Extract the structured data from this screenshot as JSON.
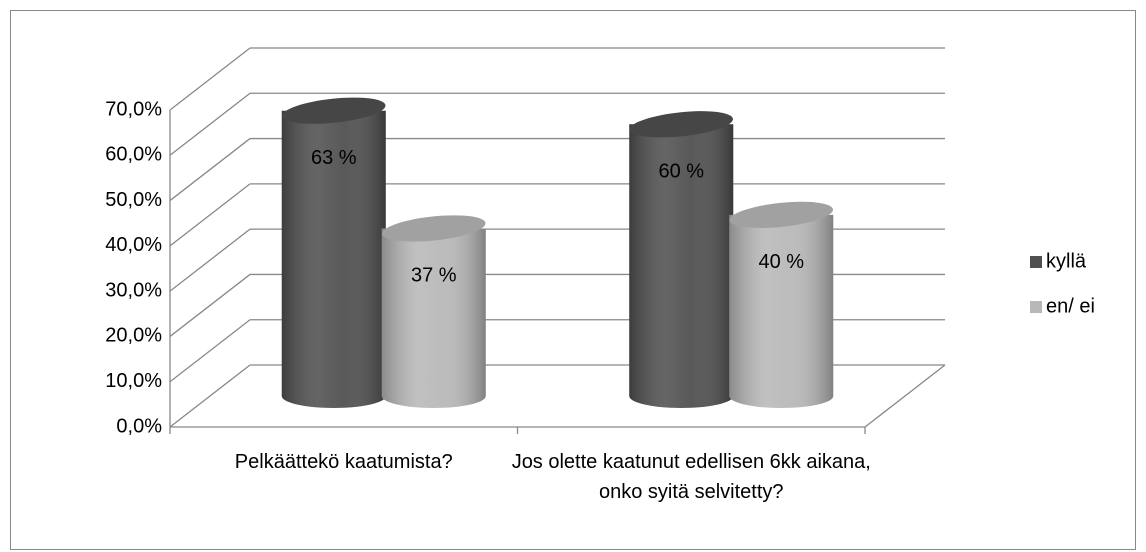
{
  "chart_data": {
    "type": "bar3d",
    "categories": [
      "Pelkäättekö kaatumista?",
      "Jos olette kaatunut edellisen 6kk aikana, onko syitä selvitetty?"
    ],
    "series": [
      {
        "name": "kyllä",
        "color": "#505050",
        "values": [
          63,
          60
        ],
        "value_labels": [
          "63 %",
          "60 %"
        ]
      },
      {
        "name": "en/ ei",
        "color": "#b8b8b8",
        "values": [
          37,
          40
        ],
        "value_labels": [
          "37 %",
          "40 %"
        ]
      }
    ],
    "ylim": [
      0,
      70
    ],
    "yticks": [
      {
        "value": 0,
        "label": "0,0%"
      },
      {
        "value": 10,
        "label": "10,0%"
      },
      {
        "value": 20,
        "label": "20,0%"
      },
      {
        "value": 30,
        "label": "30,0%"
      },
      {
        "value": 40,
        "label": "40,0%"
      },
      {
        "value": 50,
        "label": "50,0%"
      },
      {
        "value": 60,
        "label": "60,0%"
      },
      {
        "value": 70,
        "label": "70,0%"
      }
    ],
    "grid": true,
    "legend": "right"
  }
}
